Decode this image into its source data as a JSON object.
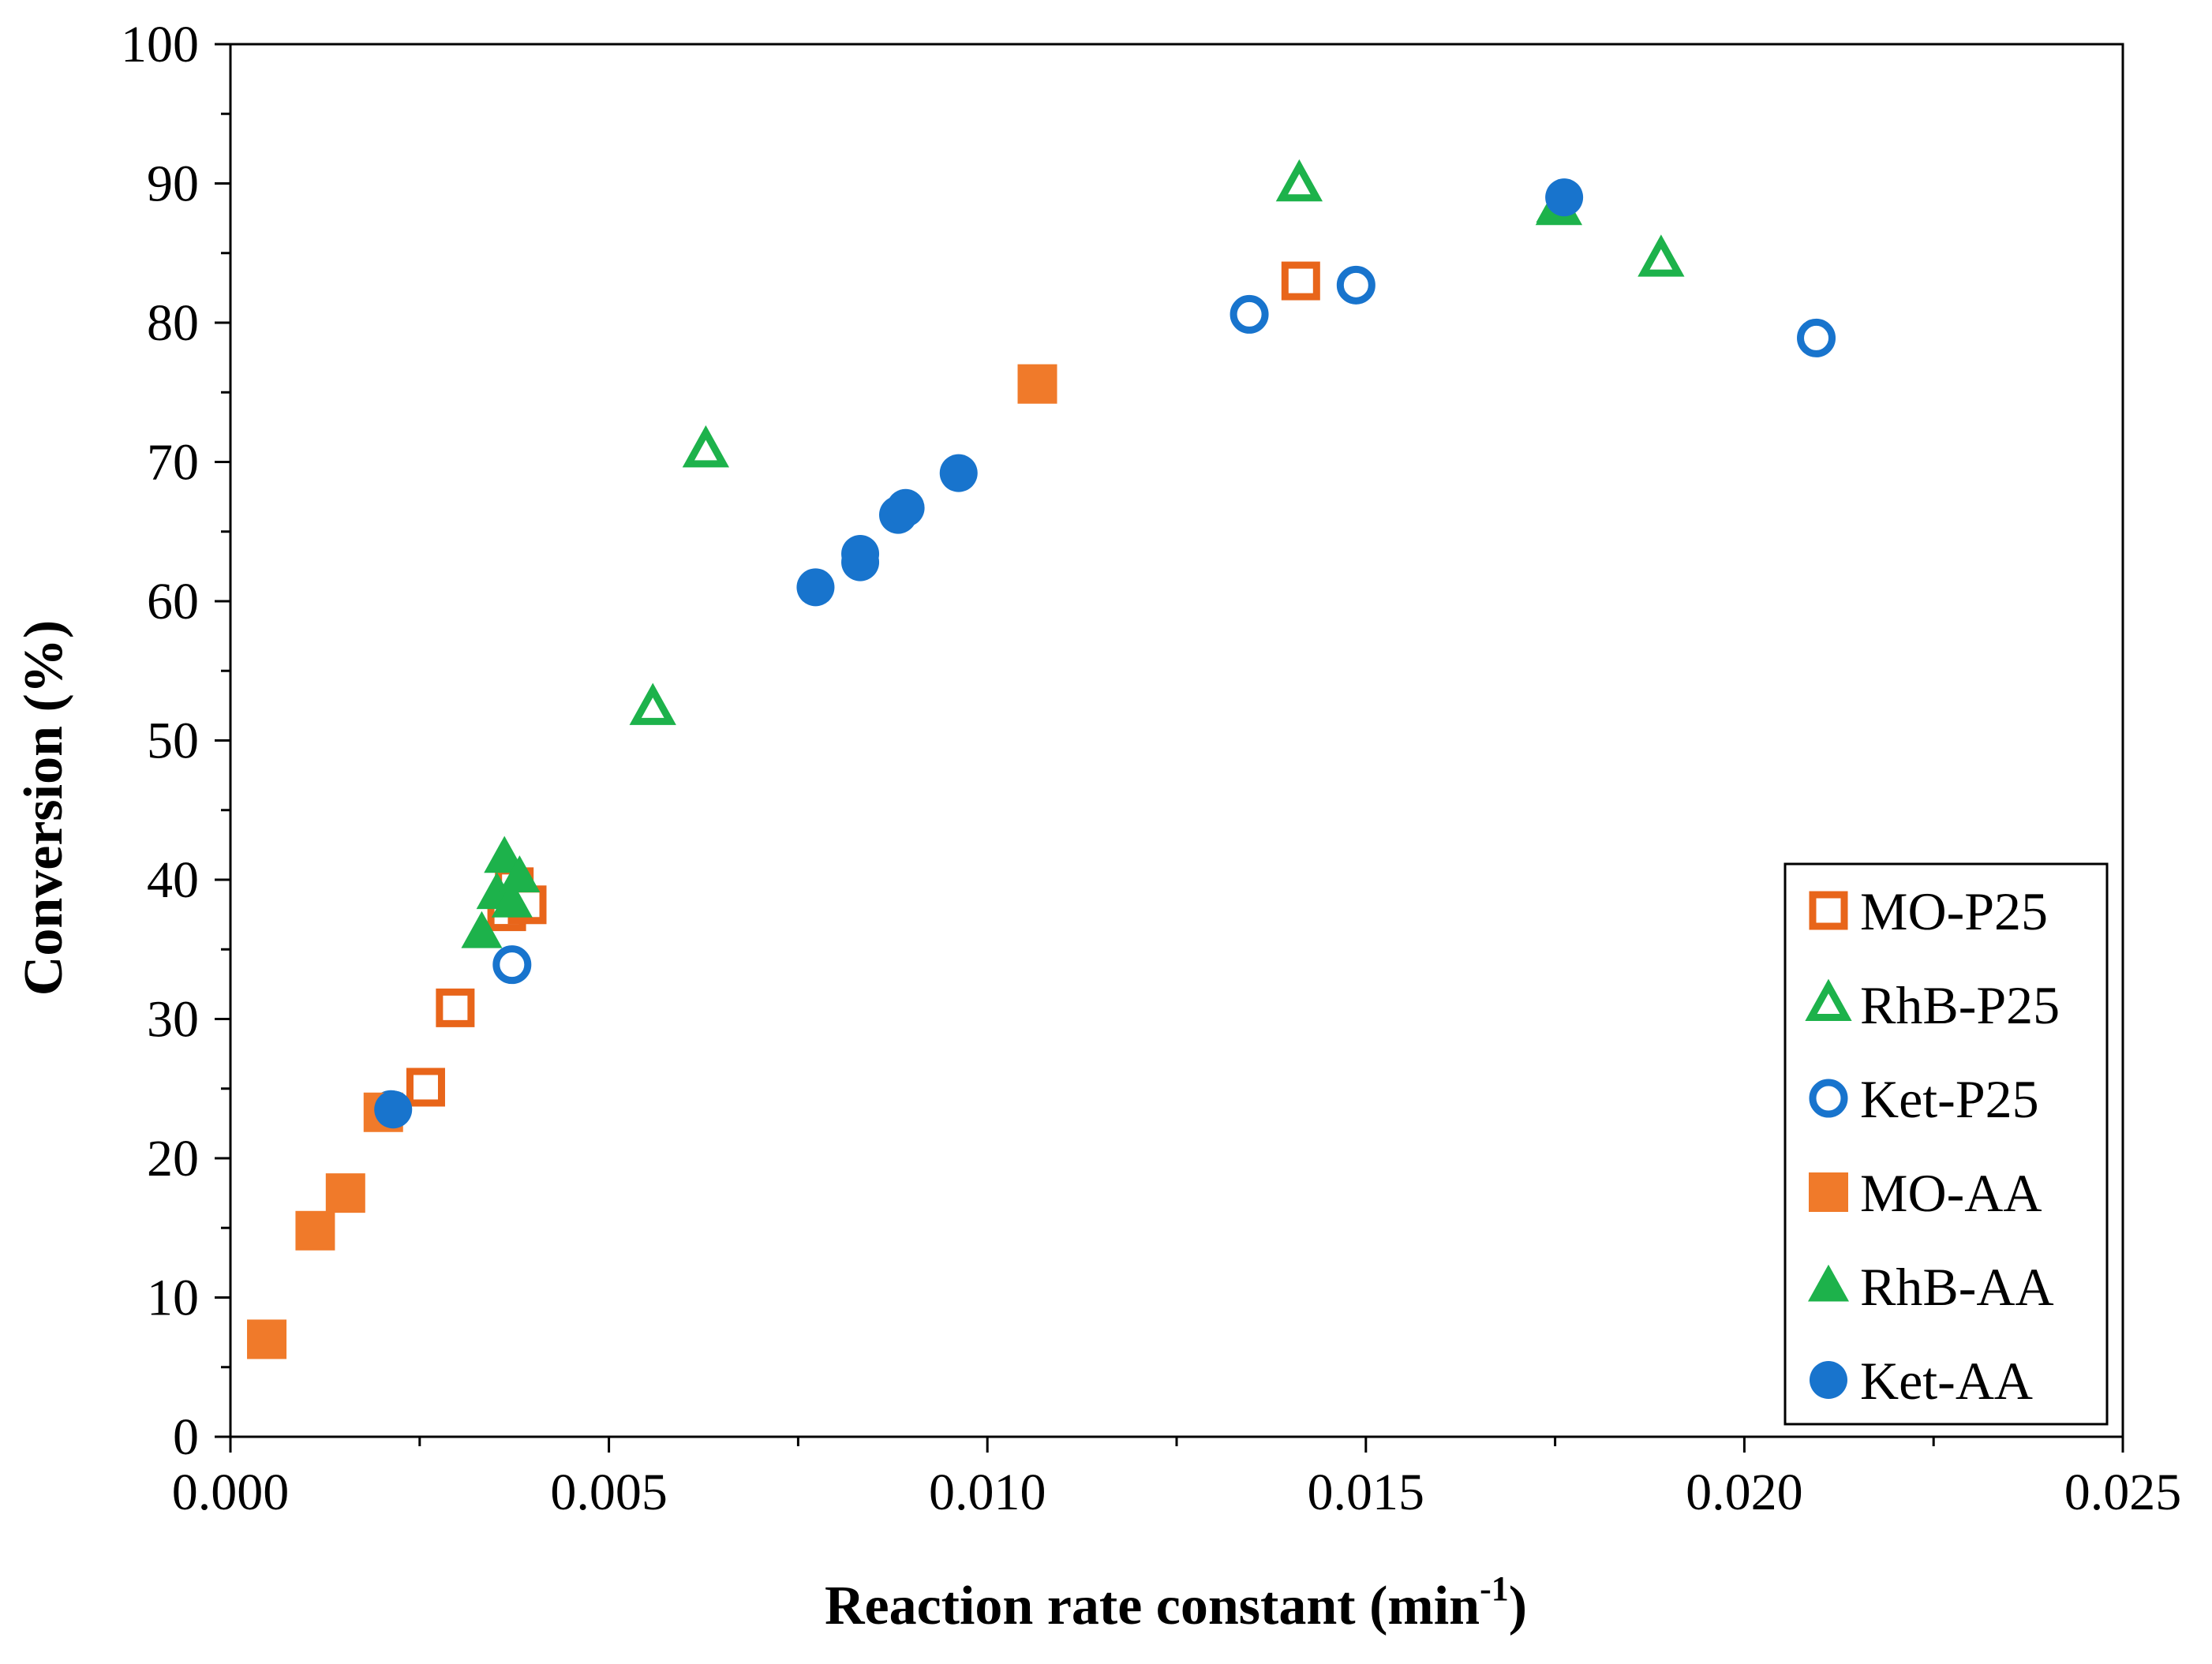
{
  "chart_data": {
    "type": "scatter",
    "title": "",
    "xlabel": "Reaction rate constant (min",
    "xlabel_sup": "-1",
    "xlabel_end": ")",
    "ylabel": "Conversion (%)",
    "xlim": [
      0,
      0.025
    ],
    "ylim": [
      0,
      100
    ],
    "x_ticks": [
      0,
      0.005,
      0.01,
      0.015,
      0.02,
      0.025
    ],
    "x_tick_labels": [
      "0.000",
      "0.005",
      "0.010",
      "0.015",
      "0.020",
      "0.025"
    ],
    "x_minor_step": 0.0025,
    "y_ticks": [
      0,
      10,
      20,
      30,
      40,
      50,
      60,
      70,
      80,
      90,
      100
    ],
    "y_tick_labels": [
      "0",
      "10",
      "20",
      "30",
      "40",
      "50",
      "60",
      "70",
      "80",
      "90",
      "100"
    ],
    "y_minor_step": 5,
    "grid": false,
    "legend_position": "bottom-right",
    "colors": {
      "orange": "#E8651A",
      "green": "#1DB24B",
      "blue": "#1874CD"
    },
    "series": [
      {
        "name": "MO-P25",
        "marker": "square",
        "filled": false,
        "color": "#E8651A",
        "points": [
          [
            0.00258,
            25.1
          ],
          [
            0.00297,
            30.8
          ],
          [
            0.00365,
            37.7
          ],
          [
            0.00375,
            39.5
          ],
          [
            0.00392,
            38.2
          ],
          [
            0.01414,
            83.0
          ]
        ]
      },
      {
        "name": "RhB-P25",
        "marker": "triangle",
        "filled": false,
        "color": "#1DB24B",
        "points": [
          [
            0.00558,
            52.3
          ],
          [
            0.00628,
            70.8
          ],
          [
            0.01412,
            89.9
          ],
          [
            0.01755,
            88.2
          ],
          [
            0.0189,
            84.5
          ]
        ]
      },
      {
        "name": "Ket-P25",
        "marker": "circle",
        "filled": false,
        "color": "#1874CD",
        "points": [
          [
            0.00372,
            33.9
          ],
          [
            0.00212,
            23.5
          ],
          [
            0.01346,
            80.6
          ],
          [
            0.01487,
            82.7
          ],
          [
            0.02095,
            78.9
          ]
        ]
      },
      {
        "name": "MO-AA",
        "marker": "square",
        "filled": true,
        "color": "#F07A2A",
        "points": [
          [
            0.00048,
            7.0
          ],
          [
            0.00112,
            14.8
          ],
          [
            0.00152,
            17.5
          ],
          [
            0.00202,
            23.3
          ],
          [
            0.01066,
            75.6
          ]
        ]
      },
      {
        "name": "RhB-AA",
        "marker": "triangle",
        "filled": true,
        "color": "#1DB24B",
        "points": [
          [
            0.00332,
            36.2
          ],
          [
            0.00352,
            39.0
          ],
          [
            0.00362,
            41.6
          ],
          [
            0.00372,
            38.4
          ],
          [
            0.00382,
            40.2
          ],
          [
            0.01752,
            88.3
          ]
        ]
      },
      {
        "name": "Ket-AA",
        "marker": "circle",
        "filled": true,
        "color": "#1874CD",
        "points": [
          [
            0.00215,
            23.5
          ],
          [
            0.00773,
            61.0
          ],
          [
            0.00832,
            62.8
          ],
          [
            0.00832,
            63.4
          ],
          [
            0.00882,
            66.2
          ],
          [
            0.00892,
            66.7
          ],
          [
            0.00962,
            69.2
          ],
          [
            0.01762,
            89.0
          ]
        ]
      }
    ]
  }
}
